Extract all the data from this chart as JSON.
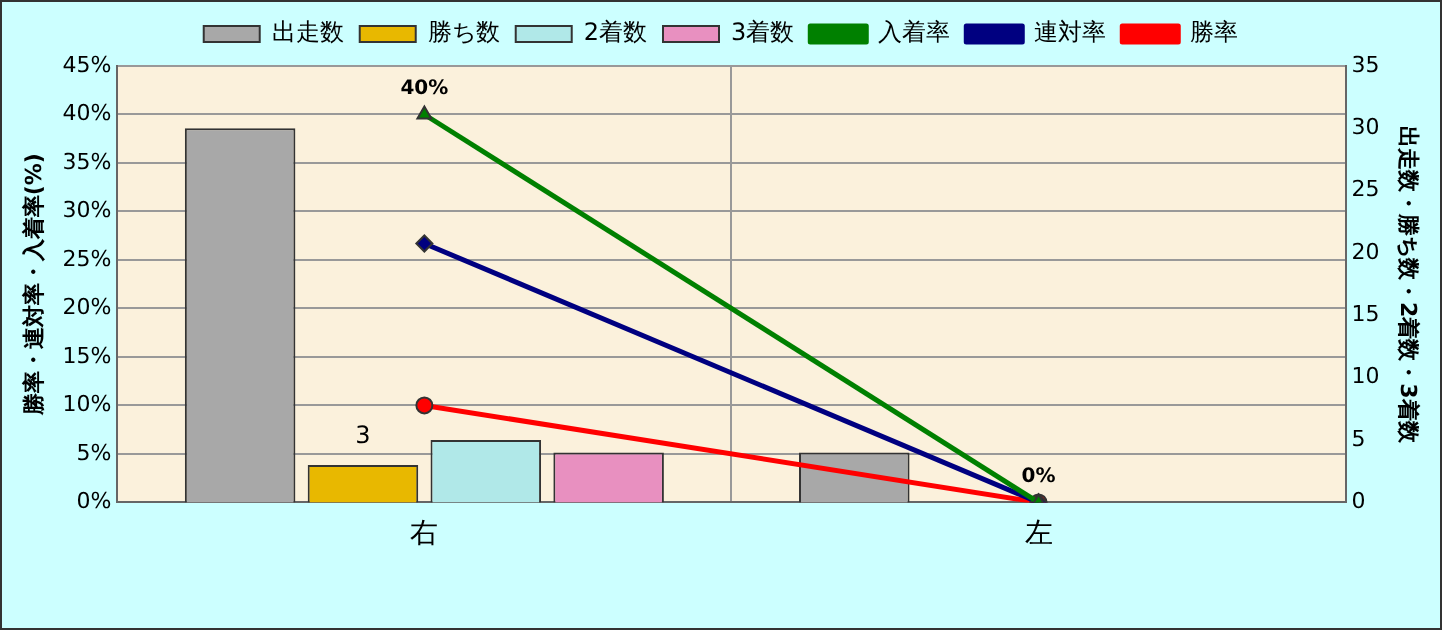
{
  "chart_data": {
    "type": "bar",
    "categories": [
      "右",
      "左"
    ],
    "ylabel": "勝率・連対率・入着率(%)",
    "y2label": "出走数・勝ち数・2着数・3着数",
    "series": [
      {
        "name": "出走数",
        "axis": "y2",
        "color": "#a8a8a8",
        "values": [
          30,
          4
        ]
      },
      {
        "name": "勝ち数",
        "axis": "y2",
        "color": "#e8b800",
        "values": [
          3,
          0
        ],
        "value_labels": [
          "3",
          null
        ]
      },
      {
        "name": "2着数",
        "axis": "y2",
        "color": "#b0e8e8",
        "values": [
          5,
          0
        ]
      },
      {
        "name": "3着数",
        "axis": "y2",
        "color": "#e890c0",
        "values": [
          4,
          0
        ]
      },
      {
        "name": "入着率",
        "type": "line",
        "axis": "y",
        "color": "#008000",
        "marker": "triangle",
        "values": [
          40,
          0
        ],
        "value_labels": [
          "40%",
          "0%"
        ]
      },
      {
        "name": "連対率",
        "type": "line",
        "axis": "y",
        "color": "#000080",
        "marker": "diamond",
        "values": [
          26.7,
          0
        ]
      },
      {
        "name": "勝率",
        "type": "line",
        "axis": "y",
        "color": "#ff0000",
        "marker": "circle",
        "values": [
          10,
          0
        ]
      }
    ],
    "ylim": [
      0,
      45
    ],
    "yticks": [
      {
        "value": 0,
        "label": "0%"
      },
      {
        "value": 5,
        "label": "5%"
      },
      {
        "value": 10,
        "label": "10%"
      },
      {
        "value": 15,
        "label": "15%"
      },
      {
        "value": 20,
        "label": "20%"
      },
      {
        "value": 25,
        "label": "25%"
      },
      {
        "value": 30,
        "label": "30%"
      },
      {
        "value": 35,
        "label": "35%"
      },
      {
        "value": 40,
        "label": "40%"
      },
      {
        "value": 45,
        "label": "45%"
      }
    ],
    "y2lim": [
      0,
      35
    ],
    "y2ticks": [
      0,
      5,
      10,
      15,
      20,
      25,
      30,
      35
    ],
    "grid": true,
    "legend": "top"
  }
}
